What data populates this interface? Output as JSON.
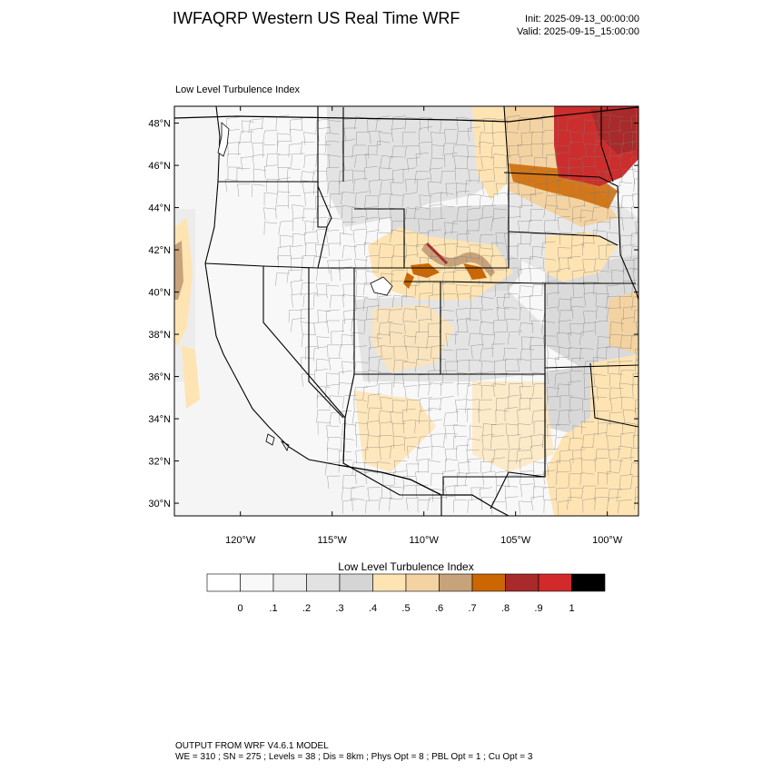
{
  "header": {
    "title": "IWFAQRP Western US Real Time WRF",
    "init": "Init: 2025-09-13_00:00:00",
    "valid": "Valid: 2025-09-15_15:00:00"
  },
  "map": {
    "subtitle": "Low Level Turbulence Index",
    "lat_range": [
      29.4,
      48.8
    ],
    "lon_range": [
      -123.6,
      -98.3
    ],
    "lat_ticks": [
      "30°N",
      "32°N",
      "34°N",
      "36°N",
      "38°N",
      "40°N",
      "42°N",
      "44°N",
      "46°N",
      "48°N"
    ],
    "lon_ticks": [
      "120°W",
      "115°W",
      "110°W",
      "105°W",
      "100°W"
    ],
    "colors": {
      "ocean": "#f2f2f2",
      "land_base": "#f7f7f7",
      "low_index": "#ffe4b3",
      "mid_index": "#c8a27a",
      "high_index": "#cc6600",
      "very_high_index": "#cc2e2e",
      "borders": "#000000"
    }
  },
  "colorbar": {
    "title": "Low Level Turbulence Index",
    "labels": [
      "0",
      ".1",
      ".2",
      ".3",
      ".4",
      ".5",
      ".6",
      ".7",
      ".8",
      ".9",
      "1"
    ],
    "colors": [
      "#ffffff",
      "#f9f9f9",
      "#efefef",
      "#e2e2e2",
      "#d5d5d5",
      "#ffe4b3",
      "#f4d3a2",
      "#c8a27a",
      "#cc6600",
      "#a82a2a",
      "#d22a2a",
      "#000000"
    ]
  },
  "footer": {
    "line1": "OUTPUT FROM WRF V4.6.1 MODEL",
    "line2": "WE = 310 ; SN = 275 ; Levels = 38 ; Dis = 8km ; Phys Opt = 8 ; PBL Opt = 1 ; Cu Opt = 3"
  }
}
